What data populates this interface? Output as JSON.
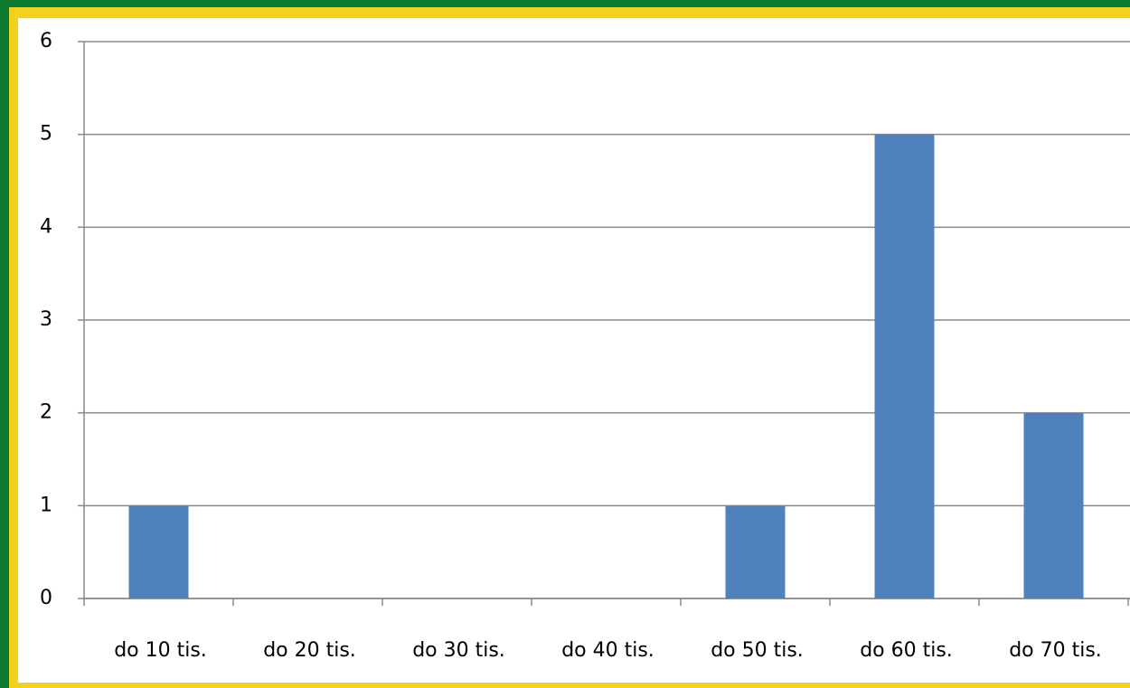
{
  "chart_data": {
    "type": "bar",
    "categories": [
      "do 10 tis.",
      "do 20 tis.",
      "do 30 tis.",
      "do 40 tis.",
      "do 50 tis.",
      "do 60 tis.",
      "do 70 tis."
    ],
    "values": [
      1,
      0,
      0,
      0,
      1,
      5,
      2
    ],
    "color": "#4f81bd",
    "ylim": [
      0,
      6
    ],
    "yticks": [
      0,
      1,
      2,
      3,
      4,
      5,
      6
    ],
    "grid": true
  }
}
